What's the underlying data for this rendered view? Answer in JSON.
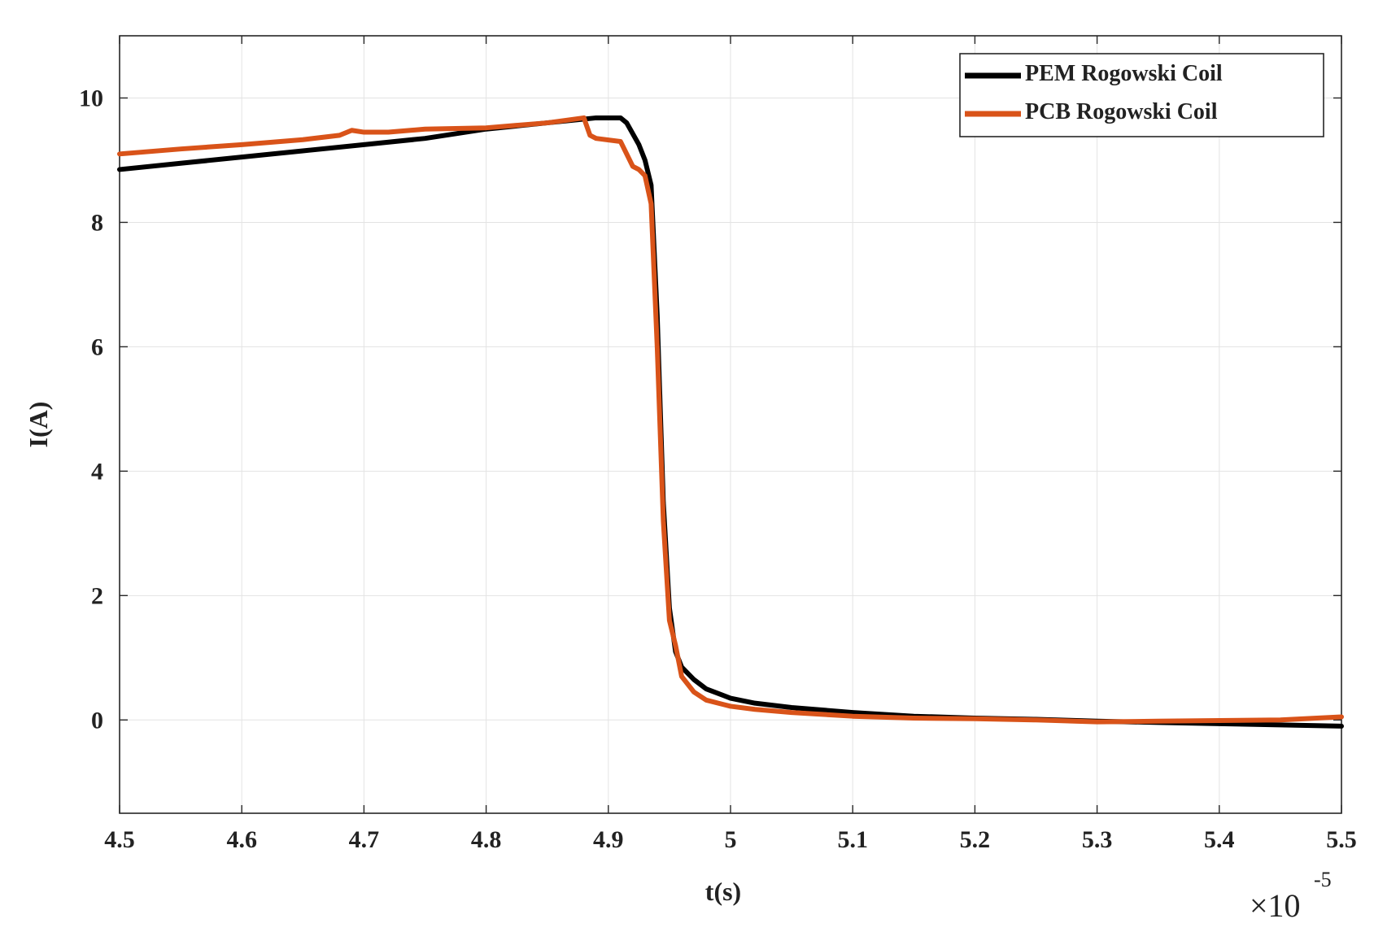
{
  "chart_data": {
    "type": "line",
    "title": "",
    "xlabel": "t(s)",
    "ylabel": "I(A)",
    "x_multiplier_label": "×10",
    "x_multiplier_exponent": "-5",
    "xlim": [
      4.5,
      5.5
    ],
    "ylim": [
      -1.5,
      11
    ],
    "grid": true,
    "legend_position": "top-right",
    "x_ticks": [
      4.5,
      4.6,
      4.7,
      4.8,
      4.9,
      5,
      5.1,
      5.2,
      5.3,
      5.4,
      5.5
    ],
    "x_tick_labels": [
      "4.5",
      "4.6",
      "4.7",
      "4.8",
      "4.9",
      "5",
      "5.1",
      "5.2",
      "5.3",
      "5.4",
      "5.5"
    ],
    "y_ticks": [
      0,
      2,
      4,
      6,
      8,
      10
    ],
    "y_tick_labels": [
      "0",
      "2",
      "4",
      "6",
      "8",
      "10"
    ],
    "series": [
      {
        "name": "PEM Rogowski Coil",
        "color": "#000000",
        "x": [
          4.5,
          4.55,
          4.6,
          4.65,
          4.7,
          4.75,
          4.8,
          4.85,
          4.89,
          4.91,
          4.915,
          4.925,
          4.93,
          4.935,
          4.94,
          4.945,
          4.95,
          4.955,
          4.96,
          4.97,
          4.98,
          5.0,
          5.02,
          5.05,
          5.1,
          5.15,
          5.2,
          5.25,
          5.3,
          5.35,
          5.4,
          5.45,
          5.5
        ],
        "y": [
          8.85,
          8.95,
          9.05,
          9.15,
          9.25,
          9.35,
          9.5,
          9.6,
          9.68,
          9.68,
          9.6,
          9.25,
          9.0,
          8.6,
          6.5,
          3.5,
          1.8,
          1.1,
          0.85,
          0.65,
          0.5,
          0.35,
          0.27,
          0.2,
          0.12,
          0.06,
          0.03,
          0.01,
          -0.02,
          -0.04,
          -0.06,
          -0.08,
          -0.1
        ]
      },
      {
        "name": "PCB Rogowski Coil",
        "color": "#d95319",
        "x": [
          4.5,
          4.55,
          4.6,
          4.65,
          4.68,
          4.69,
          4.7,
          4.72,
          4.75,
          4.8,
          4.85,
          4.88,
          4.885,
          4.89,
          4.91,
          4.915,
          4.92,
          4.925,
          4.93,
          4.935,
          4.94,
          4.945,
          4.95,
          4.955,
          4.96,
          4.97,
          4.98,
          5.0,
          5.02,
          5.05,
          5.1,
          5.15,
          5.2,
          5.25,
          5.3,
          5.35,
          5.4,
          5.45,
          5.5
        ],
        "y": [
          9.1,
          9.18,
          9.25,
          9.33,
          9.4,
          9.48,
          9.45,
          9.45,
          9.5,
          9.52,
          9.6,
          9.68,
          9.4,
          9.35,
          9.3,
          9.1,
          8.9,
          8.85,
          8.75,
          8.3,
          6.0,
          3.2,
          1.6,
          1.2,
          0.7,
          0.45,
          0.32,
          0.22,
          0.17,
          0.12,
          0.06,
          0.03,
          0.02,
          0.0,
          -0.03,
          -0.02,
          -0.01,
          0.0,
          0.05
        ]
      }
    ]
  }
}
